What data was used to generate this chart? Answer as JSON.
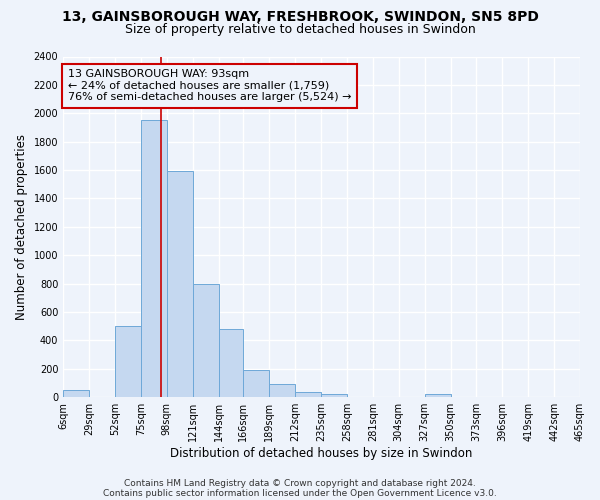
{
  "title": "13, GAINSBOROUGH WAY, FRESHBROOK, SWINDON, SN5 8PD",
  "subtitle": "Size of property relative to detached houses in Swindon",
  "xlabel": "Distribution of detached houses by size in Swindon",
  "ylabel": "Number of detached properties",
  "bin_edges": [
    6,
    29,
    52,
    75,
    98,
    121,
    144,
    166,
    189,
    212,
    235,
    258,
    281,
    304,
    327,
    350,
    373,
    396,
    419,
    442,
    465
  ],
  "bar_heights": [
    50,
    0,
    500,
    1950,
    1590,
    800,
    480,
    190,
    90,
    35,
    25,
    0,
    0,
    0,
    20,
    0,
    0,
    0,
    0,
    0
  ],
  "bar_color": "#c5d8f0",
  "bar_edge_color": "#6ea8d8",
  "property_value": 93,
  "redline_color": "#cc0000",
  "annotation_line1": "13 GAINSBOROUGH WAY: 93sqm",
  "annotation_line2": "← 24% of detached houses are smaller (1,759)",
  "annotation_line3": "76% of semi-detached houses are larger (5,524) →",
  "annotation_box_edgecolor": "#cc0000",
  "ylim": [
    0,
    2400
  ],
  "yticks": [
    0,
    200,
    400,
    600,
    800,
    1000,
    1200,
    1400,
    1600,
    1800,
    2000,
    2200,
    2400
  ],
  "tick_labels": [
    "6sqm",
    "29sqm",
    "52sqm",
    "75sqm",
    "98sqm",
    "121sqm",
    "144sqm",
    "166sqm",
    "189sqm",
    "212sqm",
    "235sqm",
    "258sqm",
    "281sqm",
    "304sqm",
    "327sqm",
    "350sqm",
    "373sqm",
    "396sqm",
    "419sqm",
    "442sqm",
    "465sqm"
  ],
  "footnote1": "Contains HM Land Registry data © Crown copyright and database right 2024.",
  "footnote2": "Contains public sector information licensed under the Open Government Licence v3.0.",
  "bg_color": "#eef3fb",
  "grid_color": "#ffffff",
  "title_fontsize": 10,
  "subtitle_fontsize": 9,
  "axis_label_fontsize": 8.5,
  "tick_fontsize": 7,
  "annotation_fontsize": 8,
  "footnote_fontsize": 6.5
}
